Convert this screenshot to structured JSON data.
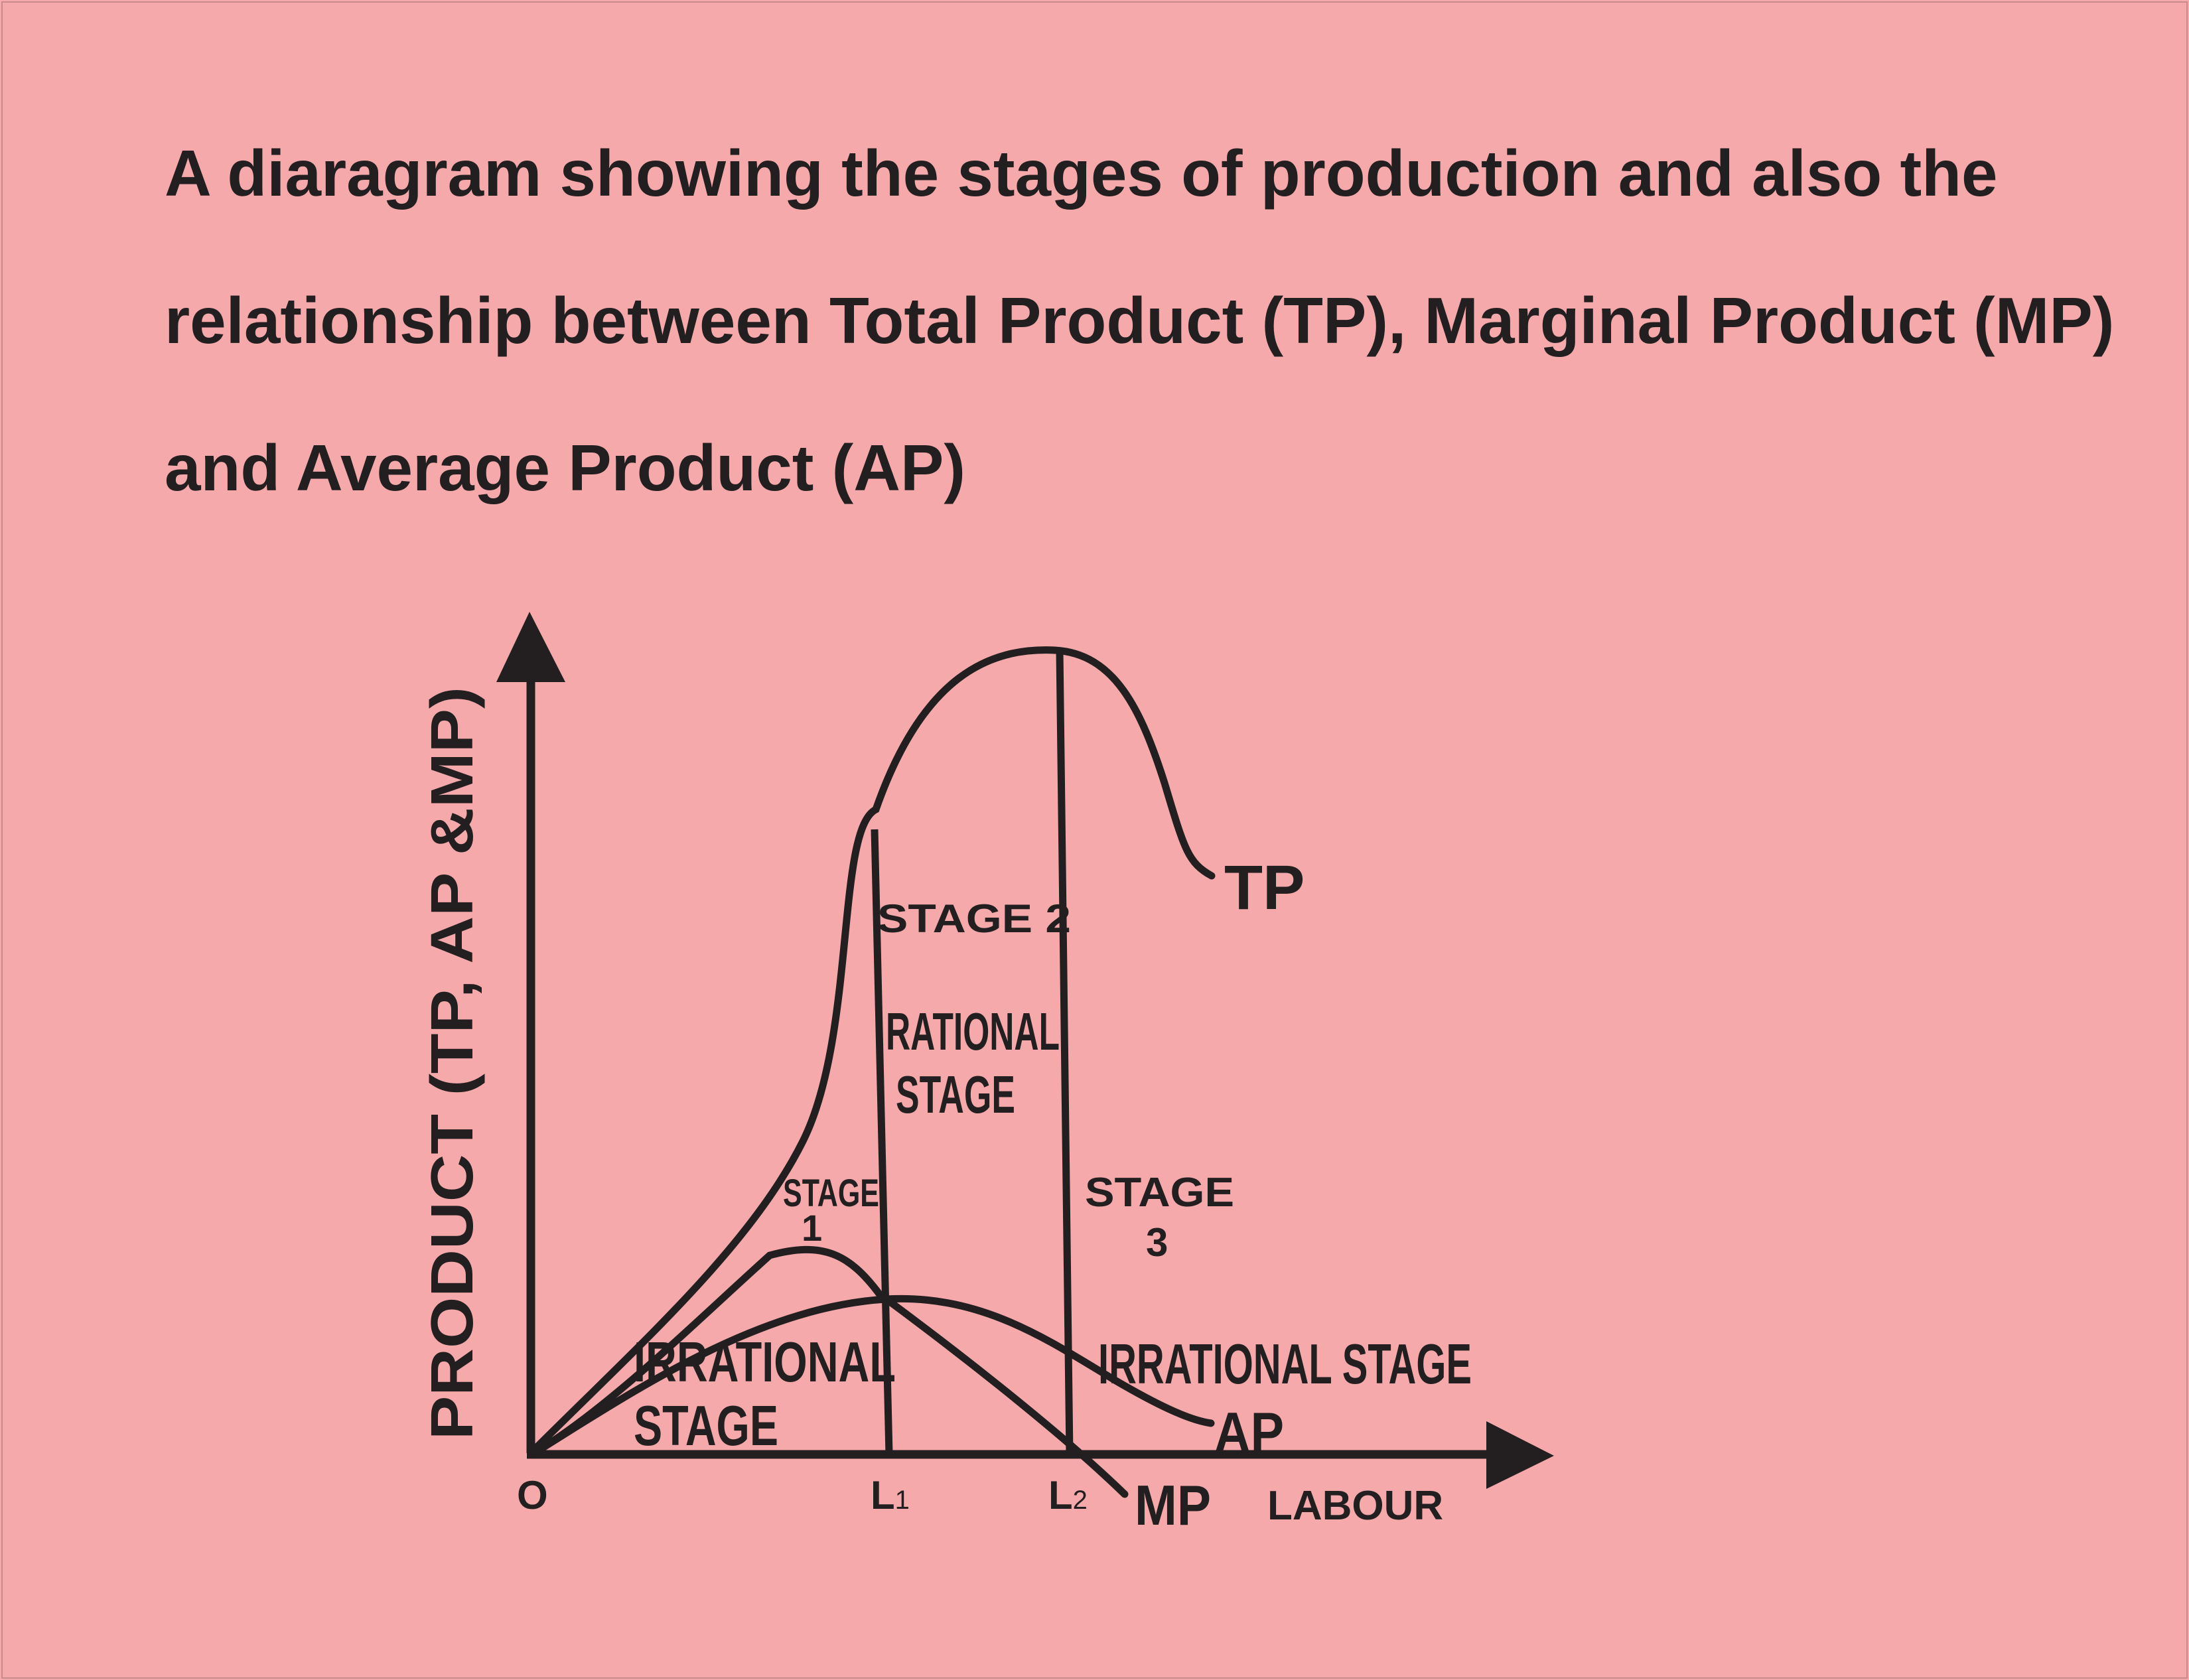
{
  "title_lines": [
    "A diaragram showing the stages of production and also the",
    "relationship between Total Product (TP), Marginal Product (MP)",
    "and Average Product (AP)"
  ],
  "axes": {
    "y_label": "PRODUCT (TP, AP &MP)",
    "x_label": "LABOUR",
    "origin": "O",
    "l1": "L",
    "l1_sub": "1",
    "l2": "L",
    "l2_sub": "2"
  },
  "curves": {
    "tp": "TP",
    "ap": "AP",
    "mp": "MP"
  },
  "stages": {
    "stage1_a": "STAGE",
    "stage1_b": "1",
    "stage2": "STAGE 2",
    "rational_a": "RATIONAL",
    "rational_b": "STAGE",
    "stage3_a": "STAGE",
    "stage3_b": "3",
    "irrational1_a": "IRRATIONAL",
    "irrational1_b": "STAGE",
    "irrational3": "IRRATIONAL STAGE"
  },
  "colors": {
    "background": "#f5a9ab",
    "ink": "#231f20"
  }
}
